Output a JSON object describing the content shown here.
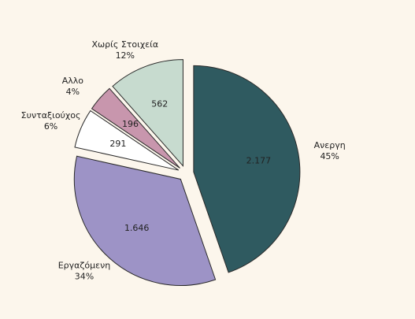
{
  "chart_data": {
    "type": "pie",
    "title": "",
    "slices": [
      {
        "name": "Ανεργη",
        "value": 2177,
        "value_label": "2.177",
        "percent_label": "45%",
        "color": "#2f5a60",
        "exploded": true
      },
      {
        "name": "Εργαζόμενη",
        "value": 1646,
        "value_label": "1.646",
        "percent_label": "34%",
        "color": "#9d93c6",
        "exploded": true
      },
      {
        "name": "Συνταξιούχος",
        "value": 291,
        "value_label": "291",
        "percent_label": "6%",
        "color": "#ffffff",
        "exploded": true
      },
      {
        "name": "Αλλο",
        "value": 196,
        "value_label": "196",
        "percent_label": "4%",
        "color": "#c896ad",
        "exploded": true
      },
      {
        "name": "Χωρίς Στοιχεία",
        "value": 562,
        "value_label": "562",
        "percent_label": "12%",
        "color": "#c7dbcf",
        "exploded": true
      }
    ],
    "start_angle_deg": 0,
    "direction": "clockwise",
    "legend": "none",
    "labels_position": "outside"
  }
}
